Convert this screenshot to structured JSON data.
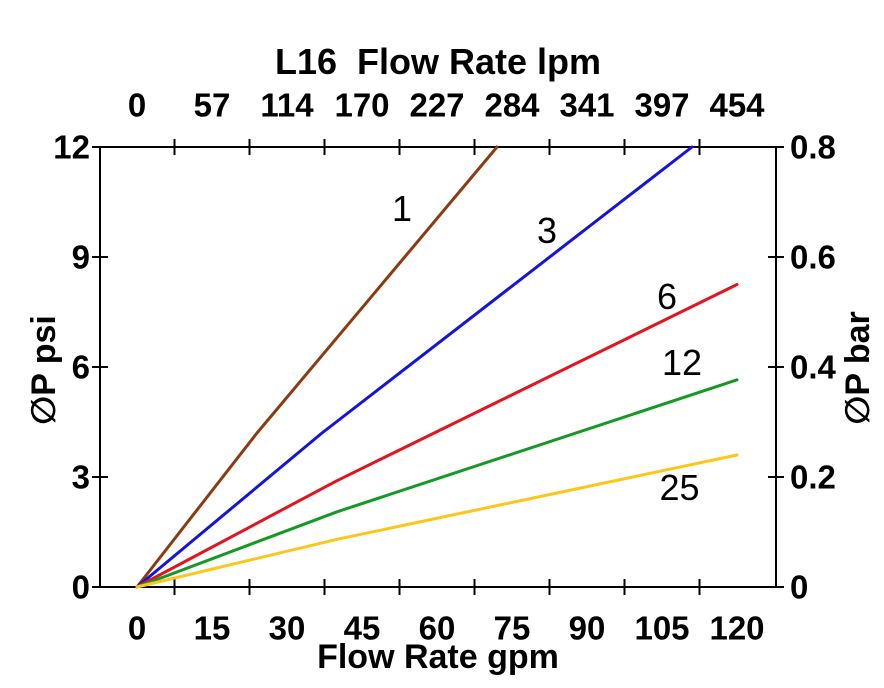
{
  "figure": {
    "background": "#FFFFFF",
    "axis_color": "#000000"
  },
  "chart_data": {
    "type": "line",
    "title": "L16  Flow Rate lpm",
    "grid": false,
    "legend": "inline-labels-on-lines",
    "top_axis": {
      "label": "L16  Flow Rate lpm",
      "unit": "lpm",
      "tick_labels": [
        "0",
        "57",
        "114",
        "170",
        "227",
        "284",
        "341",
        "397",
        "454"
      ]
    },
    "bottom_axis": {
      "label": "Flow Rate gpm",
      "unit": "gpm",
      "tick_values": [
        0,
        15,
        30,
        45,
        60,
        75,
        90,
        105,
        120
      ],
      "range": [
        0,
        120
      ]
    },
    "left_axis": {
      "label": "∅P psi",
      "unit": "psi",
      "tick_values": [
        12,
        9,
        6,
        3,
        0
      ],
      "range": [
        0,
        12
      ]
    },
    "right_axis": {
      "label": "∅P bar",
      "unit": "bar",
      "tick_labels": [
        "0.8",
        "0.6",
        "0.4",
        "0.2",
        "0"
      ],
      "tick_values": [
        0.8,
        0.6,
        0.4,
        0.2,
        0
      ],
      "range": [
        0,
        0.8
      ]
    },
    "series": [
      {
        "label": "1",
        "color": "#8C3A10",
        "points_gpm_psi": [
          [
            0,
            0
          ],
          [
            24,
            4.2
          ],
          [
            72,
            12
          ]
        ],
        "label_pos_gpm_psi": [
          53,
          10.3
        ]
      },
      {
        "label": "3",
        "color": "#1414DC",
        "points_gpm_psi": [
          [
            0,
            0
          ],
          [
            37,
            4.2
          ],
          [
            111,
            12
          ]
        ],
        "label_pos_gpm_psi": [
          82,
          9.7
        ]
      },
      {
        "label": "6",
        "color": "#E3141E",
        "points_gpm_psi": [
          [
            0,
            0
          ],
          [
            40,
            2.9
          ],
          [
            120,
            8.25
          ]
        ],
        "label_pos_gpm_psi": [
          106,
          7.9
        ]
      },
      {
        "label": "12",
        "color": "#149A24",
        "points_gpm_psi": [
          [
            0,
            0
          ],
          [
            40,
            2.05
          ],
          [
            120,
            5.65
          ]
        ],
        "label_pos_gpm_psi": [
          109,
          6.1
        ]
      },
      {
        "label": "25",
        "color": "#FBC71B",
        "points_gpm_psi": [
          [
            0,
            0
          ],
          [
            40,
            1.3
          ],
          [
            120,
            3.6
          ]
        ],
        "label_pos_gpm_psi": [
          108.5,
          2.7
        ]
      }
    ]
  }
}
